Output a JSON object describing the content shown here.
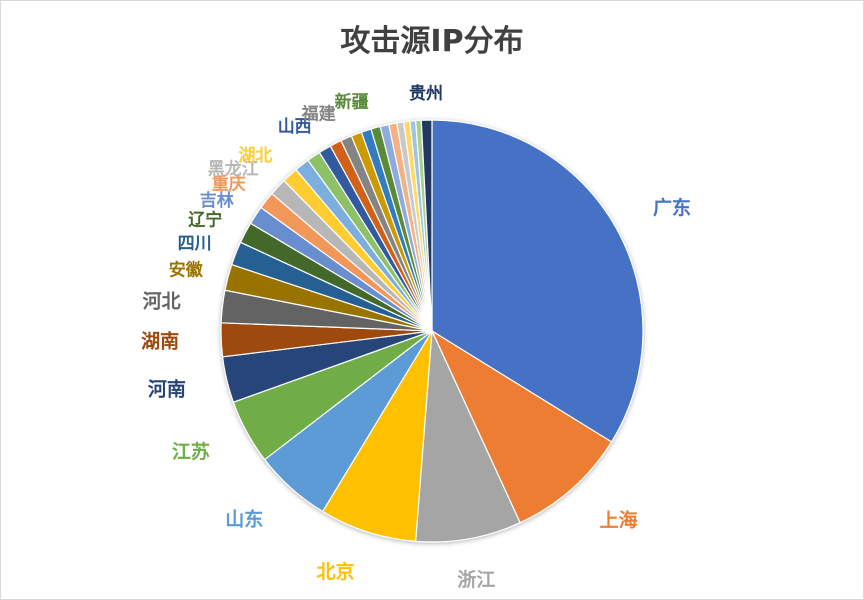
{
  "chart_data": {
    "type": "pie",
    "title": "攻击源IP分布",
    "legend": "none",
    "slices": [
      {
        "label": "广东",
        "value": 35.5,
        "color": "#4472C4"
      },
      {
        "label": "上海",
        "value": 9.8,
        "color": "#ED7D31"
      },
      {
        "label": "浙江",
        "value": 8.5,
        "color": "#A5A5A5"
      },
      {
        "label": "北京",
        "value": 7.8,
        "color": "#FFC000"
      },
      {
        "label": "山东",
        "value": 6.2,
        "color": "#5B9BD5"
      },
      {
        "label": "江苏",
        "value": 5.2,
        "color": "#70AD47"
      },
      {
        "label": "河南",
        "value": 3.7,
        "color": "#264478"
      },
      {
        "label": "湖南",
        "value": 2.7,
        "color": "#9E480E"
      },
      {
        "label": "河北",
        "value": 2.6,
        "color": "#636363"
      },
      {
        "label": "安徽",
        "value": 2.1,
        "color": "#997300"
      },
      {
        "label": "四川",
        "value": 1.9,
        "color": "#255E91"
      },
      {
        "label": "辽宁",
        "value": 1.7,
        "color": "#43682B"
      },
      {
        "label": "吉林",
        "value": 1.5,
        "color": "#698ED0"
      },
      {
        "label": "重庆",
        "value": 1.4,
        "color": "#F1975A"
      },
      {
        "label": "黑龙江",
        "value": 1.4,
        "color": "#B7B7B7"
      },
      {
        "label": "湖北",
        "value": 1.3,
        "color": "#FFCD33"
      },
      {
        "label": "",
        "value": 1.2,
        "color": "#7CAFDD"
      },
      {
        "label": "",
        "value": 1.1,
        "color": "#8CC168"
      },
      {
        "label": "山西",
        "value": 1.0,
        "color": "#335AA1"
      },
      {
        "label": "",
        "value": 0.95,
        "color": "#D26012"
      },
      {
        "label": "福建",
        "value": 0.9,
        "color": "#848484"
      },
      {
        "label": "",
        "value": 0.85,
        "color": "#CC9A00"
      },
      {
        "label": "",
        "value": 0.8,
        "color": "#327DC2"
      },
      {
        "label": "新疆",
        "value": 0.75,
        "color": "#5A8A39"
      },
      {
        "label": "",
        "value": 0.7,
        "color": "#8FAADC"
      },
      {
        "label": "",
        "value": 0.65,
        "color": "#F4B183"
      },
      {
        "label": "",
        "value": 0.55,
        "color": "#C9C9C9"
      },
      {
        "label": "",
        "value": 0.5,
        "color": "#FFD966"
      },
      {
        "label": "",
        "value": 0.45,
        "color": "#9DC3E6"
      },
      {
        "label": "",
        "value": 0.45,
        "color": "#A9D18E"
      },
      {
        "label": "贵州",
        "value": 0.85,
        "color": "#203864"
      }
    ]
  }
}
